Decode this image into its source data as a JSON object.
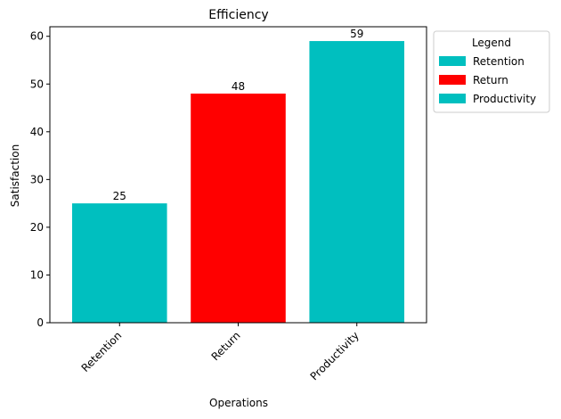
{
  "chart_data": {
    "type": "bar",
    "title": "Efficiency",
    "xlabel": "Operations",
    "ylabel": "Satisfaction",
    "categories": [
      "Retention",
      "Return",
      "Productivity"
    ],
    "values": [
      25,
      48,
      59
    ],
    "bar_colors": [
      "#00BFBF",
      "#FF0000",
      "#00BFBF"
    ],
    "ylim": [
      0,
      62
    ],
    "yticks": [
      0,
      10,
      20,
      30,
      40,
      50,
      60
    ],
    "grid": false,
    "legend": {
      "title": "Legend",
      "placement": "outside-top-right",
      "entries": [
        {
          "label": "Retention",
          "color": "#00BFBF"
        },
        {
          "label": "Return",
          "color": "#FF0000"
        },
        {
          "label": "Productivity",
          "color": "#00BFBF"
        }
      ]
    }
  }
}
